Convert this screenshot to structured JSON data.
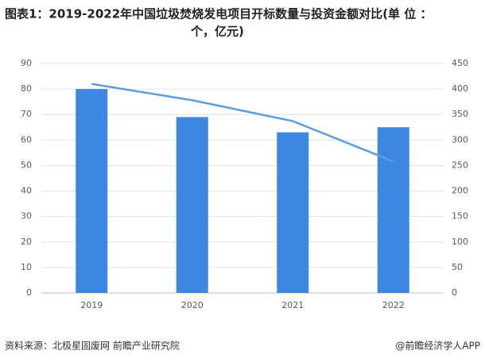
{
  "chart_data": {
    "type": "bar-line",
    "title": [
      "图表1：2019-2022年中国垃圾焚烧发电项目开标数量与投资金额对比(单 位 ：",
      "个，亿元)"
    ],
    "categories": [
      "2019",
      "2020",
      "2021",
      "2022"
    ],
    "series": [
      {
        "type": "bar",
        "color": "#3d87e2",
        "values": [
          80,
          69,
          63,
          65
        ]
      },
      {
        "type": "line",
        "axis": "y2",
        "color": "#5b9be0",
        "values": [
          410,
          378,
          337,
          258
        ]
      }
    ],
    "ylim": [
      0,
      90
    ],
    "yticks": [
      0,
      10,
      20,
      30,
      40,
      50,
      60,
      70,
      80,
      90
    ],
    "y2lim": [
      0,
      450
    ],
    "y2ticks": [
      0,
      50,
      100,
      150,
      200,
      250,
      300,
      350,
      400,
      450
    ],
    "grid": true,
    "source": "资料来源：北极星固废网 前瞻产业研究院",
    "credit": "@前瞻经济学人APP"
  }
}
